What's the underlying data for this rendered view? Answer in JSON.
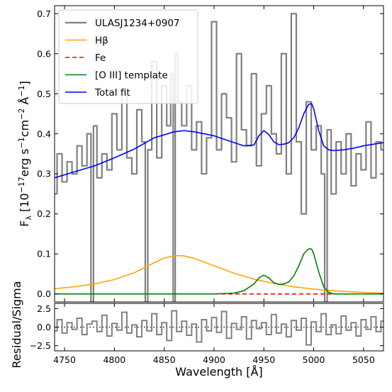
{
  "chart_data": [
    {
      "type": "line",
      "panel": "main",
      "xlim": [
        4740,
        5070
      ],
      "ylim": [
        -0.02,
        0.72
      ],
      "ylabel": "F_λ [10^-17 erg s^-1 cm^-2 Å^-1]",
      "xlabel": "",
      "yticks": [
        0.0,
        0.1,
        0.2,
        0.3,
        0.4,
        0.5,
        0.6,
        0.7
      ],
      "ytick_labels": [
        "0.0",
        "0.1",
        "0.2",
        "0.3",
        "0.4",
        "0.5",
        "0.6",
        "0.7"
      ],
      "xticks": [
        4750,
        4800,
        4850,
        4900,
        4950,
        5000,
        5050
      ],
      "grid": false,
      "legend_position": "top-left",
      "legend": [
        "ULASJ1234+0907",
        "Hβ",
        "Fe",
        "[O III] template",
        "Total fit"
      ],
      "series": [
        {
          "name": "ULASJ1234+0907",
          "style": "steps",
          "color": "#808080",
          "x": [
            4740,
            4745,
            4750,
            4755,
            4760,
            4765,
            4770,
            4775,
            4778,
            4780,
            4785,
            4790,
            4795,
            4800,
            4805,
            4810,
            4815,
            4820,
            4825,
            4830,
            4832,
            4835,
            4840,
            4845,
            4850,
            4855,
            4858,
            4860,
            4862,
            4865,
            4870,
            4875,
            4880,
            4885,
            4890,
            4895,
            4900,
            4905,
            4910,
            4915,
            4920,
            4925,
            4930,
            4935,
            4940,
            4945,
            4950,
            4955,
            4960,
            4965,
            4970,
            4975,
            4980,
            4985,
            4990,
            4995,
            5000,
            5005,
            5010,
            5012,
            5015,
            5020,
            5025,
            5030,
            5035,
            5040,
            5045,
            5050,
            5055,
            5060,
            5065,
            5070
          ],
          "y": [
            0.25,
            0.35,
            0.28,
            0.33,
            0.3,
            0.37,
            0.32,
            0.4,
            -0.02,
            0.42,
            0.29,
            0.35,
            0.31,
            0.45,
            0.36,
            0.5,
            0.34,
            0.3,
            0.46,
            0.38,
            -0.02,
            0.36,
            0.58,
            0.34,
            0.52,
            0.42,
            0.55,
            -0.02,
            0.6,
            0.48,
            0.42,
            0.52,
            0.36,
            0.43,
            0.3,
            0.39,
            0.68,
            0.36,
            0.5,
            0.44,
            0.33,
            0.6,
            0.41,
            0.37,
            0.55,
            0.32,
            0.45,
            0.52,
            0.4,
            0.35,
            0.6,
            0.3,
            0.7,
            0.38,
            0.2,
            0.48,
            0.36,
            0.42,
            0.3,
            -0.02,
            0.41,
            0.25,
            0.38,
            0.3,
            0.4,
            0.27,
            0.35,
            0.31,
            0.43,
            0.29,
            0.38,
            0.36
          ]
        },
        {
          "name": "Hβ",
          "style": "line",
          "color": "#ffa500",
          "x": [
            4740,
            4760,
            4780,
            4800,
            4820,
            4840,
            4850,
            4860,
            4865,
            4870,
            4880,
            4900,
            4920,
            4940,
            4960,
            4980,
            5000,
            5020,
            5040,
            5060,
            5070
          ],
          "y": [
            0.013,
            0.018,
            0.025,
            0.036,
            0.053,
            0.078,
            0.09,
            0.095,
            0.096,
            0.095,
            0.089,
            0.07,
            0.052,
            0.037,
            0.026,
            0.018,
            0.012,
            0.008,
            0.005,
            0.003,
            0.002
          ]
        },
        {
          "name": "Fe",
          "style": "dashed",
          "color": "#ff0000",
          "x": [
            4900,
            5020
          ],
          "y": [
            0.0,
            0.0
          ]
        },
        {
          "name": "[O III] template",
          "style": "line",
          "color": "#008000",
          "x": [
            4740,
            4900,
            4920,
            4930,
            4940,
            4945,
            4950,
            4955,
            4960,
            4965,
            4970,
            4975,
            4980,
            4985,
            4990,
            4995,
            4998,
            5000,
            5005,
            5010,
            5015,
            5020,
            5070
          ],
          "y": [
            0.0,
            0.0,
            0.002,
            0.008,
            0.025,
            0.04,
            0.047,
            0.04,
            0.028,
            0.024,
            0.025,
            0.03,
            0.045,
            0.07,
            0.1,
            0.113,
            0.112,
            0.1,
            0.055,
            0.018,
            0.004,
            0.0,
            0.0
          ]
        },
        {
          "name": "Total fit",
          "style": "line",
          "color": "#0000ff",
          "x": [
            4740,
            4760,
            4780,
            4800,
            4820,
            4840,
            4860,
            4870,
            4880,
            4900,
            4920,
            4930,
            4940,
            4945,
            4950,
            4955,
            4960,
            4965,
            4970,
            4975,
            4980,
            4985,
            4990,
            4995,
            4998,
            5000,
            5005,
            5010,
            5015,
            5020,
            5030,
            5040,
            5050,
            5060,
            5070
          ],
          "y": [
            0.29,
            0.305,
            0.32,
            0.34,
            0.362,
            0.39,
            0.405,
            0.408,
            0.405,
            0.395,
            0.378,
            0.37,
            0.372,
            0.395,
            0.408,
            0.398,
            0.38,
            0.373,
            0.374,
            0.378,
            0.39,
            0.415,
            0.45,
            0.474,
            0.475,
            0.462,
            0.408,
            0.37,
            0.36,
            0.358,
            0.36,
            0.364,
            0.37,
            0.374,
            0.378
          ]
        }
      ]
    },
    {
      "type": "line",
      "panel": "residual",
      "xlim": [
        4740,
        5070
      ],
      "ylim": [
        -3.2,
        3.2
      ],
      "xlabel": "Wavelength [Å]",
      "ylabel": "Residual/Sigma",
      "yticks": [
        -2.5,
        0.0,
        2.5
      ],
      "ytick_labels": [
        "−2.5",
        "0.0",
        "2.5"
      ],
      "xticks": [
        4750,
        4800,
        4850,
        4900,
        4950,
        5000,
        5050
      ],
      "xtick_labels": [
        "4750",
        "4800",
        "4850",
        "4900",
        "4950",
        "5000",
        "5050"
      ],
      "zero_line": 0.0,
      "series": [
        {
          "style": "steps",
          "color": "#808080",
          "x": [
            4740,
            4745,
            4750,
            4755,
            4760,
            4765,
            4770,
            4775,
            4780,
            4785,
            4790,
            4795,
            4800,
            4805,
            4810,
            4815,
            4820,
            4825,
            4830,
            4835,
            4840,
            4845,
            4850,
            4855,
            4860,
            4865,
            4870,
            4875,
            4880,
            4885,
            4890,
            4895,
            4900,
            4905,
            4910,
            4915,
            4920,
            4925,
            4930,
            4935,
            4940,
            4945,
            4950,
            4955,
            4960,
            4965,
            4970,
            4975,
            4980,
            4985,
            4990,
            4995,
            5000,
            5005,
            5010,
            5015,
            5020,
            5025,
            5030,
            5035,
            5040,
            5045,
            5050,
            5055,
            5060,
            5065,
            5070
          ],
          "y": [
            -0.5,
            1.0,
            -0.8,
            0.6,
            -0.3,
            1.2,
            -1.0,
            0.4,
            0.8,
            -0.6,
            1.6,
            -1.2,
            0.5,
            -0.4,
            2.0,
            -0.8,
            0.3,
            -1.3,
            0.9,
            -0.5,
            1.8,
            -1.0,
            0.6,
            -1.8,
            2.2,
            -0.6,
            0.8,
            -1.1,
            0.4,
            -2.0,
            1.0,
            -0.5,
            1.3,
            -0.7,
            2.1,
            -1.5,
            0.5,
            -0.3,
            1.4,
            -1.6,
            0.9,
            -0.2,
            0.6,
            -1.0,
            1.7,
            -0.8,
            0.4,
            -1.3,
            0.9,
            -0.4,
            1.2,
            -2.4,
            0.7,
            -0.6,
            1.8,
            -1.0,
            0.3,
            -0.9,
            1.5,
            -0.4,
            0.6,
            -1.2,
            1.0,
            -0.3,
            1.4,
            -0.6,
            0.8
          ]
        }
      ]
    }
  ]
}
